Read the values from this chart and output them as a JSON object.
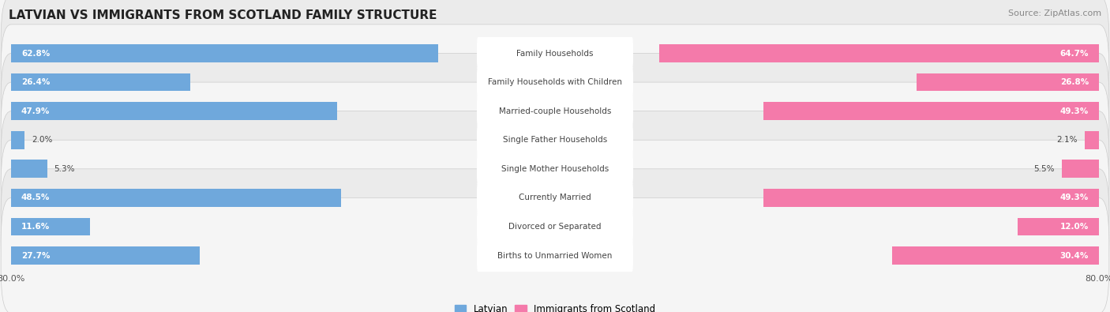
{
  "title": "LATVIAN VS IMMIGRANTS FROM SCOTLAND FAMILY STRUCTURE",
  "source": "Source: ZipAtlas.com",
  "categories": [
    "Family Households",
    "Family Households with Children",
    "Married-couple Households",
    "Single Father Households",
    "Single Mother Households",
    "Currently Married",
    "Divorced or Separated",
    "Births to Unmarried Women"
  ],
  "latvian_values": [
    62.8,
    26.4,
    47.9,
    2.0,
    5.3,
    48.5,
    11.6,
    27.7
  ],
  "immigrant_values": [
    64.7,
    26.8,
    49.3,
    2.1,
    5.5,
    49.3,
    12.0,
    30.4
  ],
  "latvian_labels": [
    "62.8%",
    "26.4%",
    "47.9%",
    "2.0%",
    "5.3%",
    "48.5%",
    "11.6%",
    "27.7%"
  ],
  "immigrant_labels": [
    "64.7%",
    "26.8%",
    "49.3%",
    "2.1%",
    "5.5%",
    "49.3%",
    "12.0%",
    "30.4%"
  ],
  "latvian_color": "#6fa8dc",
  "immigrant_color": "#f47aaa",
  "axis_max": 80.0,
  "background_color": "#f5f5f5",
  "row_bg_even": "#ebebeb",
  "row_bg_odd": "#f5f5f5",
  "label_threshold": 10.0,
  "bar_height": 0.62,
  "legend_latvian": "Latvian",
  "legend_immigrant": "Immigrants from Scotland",
  "pill_color": "#ffffff",
  "pill_text_color": "#444444",
  "label_in_color": "#ffffff",
  "label_out_color": "#444444",
  "title_fontsize": 11,
  "source_fontsize": 8,
  "category_fontsize": 7.5,
  "value_fontsize": 7.5,
  "tick_fontsize": 8,
  "legend_fontsize": 8.5
}
